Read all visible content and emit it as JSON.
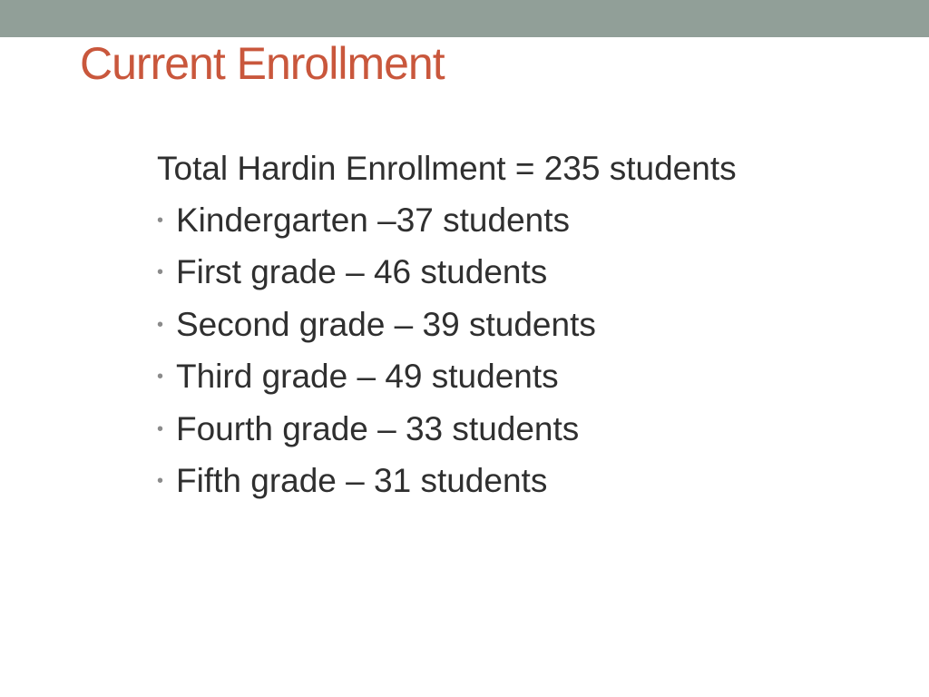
{
  "slide": {
    "title": "Current Enrollment",
    "lead": "Total Hardin Enrollment = 235 students",
    "bullet_glyph": "•",
    "bullets": [
      "Kindergarten –37 students",
      "First grade – 46 students",
      "Second grade – 39 students",
      "Third grade – 49 students",
      "Fourth grade – 33 students",
      "Fifth grade – 31 students"
    ]
  },
  "colors": {
    "top_bar": "#919f98",
    "title": "#c9573c",
    "body_text": "#2f2f2f",
    "bullet": "#8b8b8b",
    "background": "#ffffff"
  }
}
